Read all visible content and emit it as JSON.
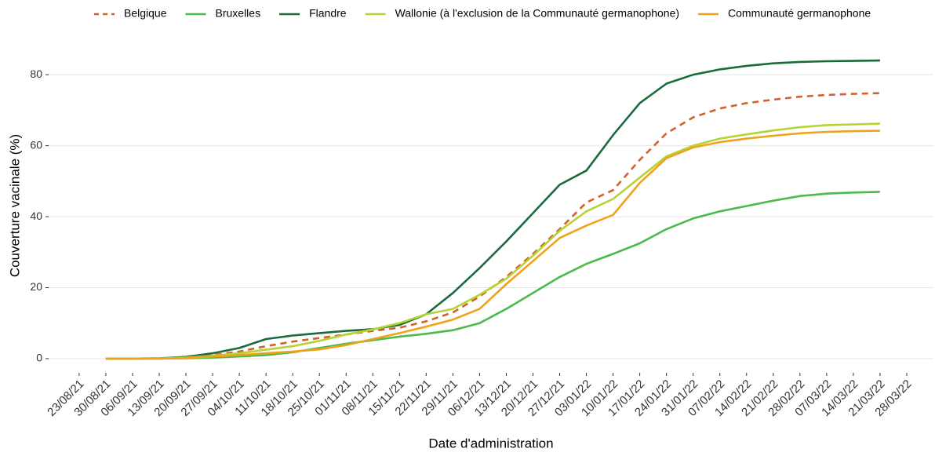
{
  "chart_data": {
    "type": "line",
    "x_label": "Date d'administration",
    "y_label": "Couverture vacinale (%)",
    "x": [
      "30/08/21",
      "06/09/21",
      "13/09/21",
      "20/09/21",
      "27/09/21",
      "04/10/21",
      "11/10/21",
      "18/10/21",
      "25/10/21",
      "01/11/21",
      "08/11/21",
      "15/11/21",
      "22/11/21",
      "29/11/21",
      "06/12/21",
      "13/12/21",
      "20/12/21",
      "27/12/21",
      "03/01/22",
      "10/01/22",
      "17/01/22",
      "24/01/22",
      "31/01/22",
      "07/02/22",
      "14/02/22",
      "21/02/22",
      "28/02/22",
      "07/03/22",
      "14/03/22",
      "21/03/22"
    ],
    "series": [
      {
        "name": "Belgique",
        "color": "#d2622a",
        "dash": true,
        "values": [
          0,
          0,
          0.1,
          0.4,
          1,
          2,
          3.5,
          4.8,
          5.8,
          6.8,
          7.8,
          8.7,
          10.5,
          13,
          17.5,
          23,
          29.5,
          36.5,
          44,
          47.5,
          56,
          63.5,
          68,
          70.5,
          72,
          73,
          73.8,
          74.3,
          74.6,
          74.8
        ]
      },
      {
        "name": "Bruxelles",
        "color": "#4cba4c",
        "values": [
          0,
          0,
          0,
          0.1,
          0.3,
          0.6,
          1,
          1.8,
          3,
          4.2,
          5.2,
          6.2,
          7,
          8,
          10,
          14,
          18.5,
          23,
          26.7,
          29.5,
          32.5,
          36.5,
          39.5,
          41.5,
          43,
          44.5,
          45.8,
          46.5,
          46.8,
          47
        ]
      },
      {
        "name": "Flandre",
        "color": "#1a6b3c",
        "values": [
          0,
          0,
          0.1,
          0.5,
          1.5,
          3,
          5.5,
          6.5,
          7.2,
          7.8,
          8.3,
          9.5,
          12.5,
          18.5,
          25.5,
          33,
          41,
          49,
          53,
          63,
          72,
          77.5,
          80,
          81.5,
          82.5,
          83.2,
          83.6,
          83.8,
          83.9,
          84
        ]
      },
      {
        "name": "Wallonie (à l'exclusion de la Communauté germanophone)",
        "color": "#b5d334",
        "values": [
          0,
          0,
          0.1,
          0.3,
          0.8,
          1.5,
          2.5,
          3.5,
          5,
          6.8,
          8.2,
          10,
          12.5,
          14,
          18,
          22.5,
          29,
          36,
          41.5,
          45,
          51,
          57,
          60,
          62,
          63.2,
          64.3,
          65.2,
          65.8,
          66,
          66.2
        ]
      },
      {
        "name": "Communauté germanophone",
        "color": "#f0a21c",
        "values": [
          0,
          0,
          0,
          0.2,
          0.6,
          1,
          1.5,
          2,
          2.6,
          3.8,
          5.5,
          7.2,
          9,
          11,
          14,
          21,
          27.5,
          34,
          37.5,
          40.5,
          49.5,
          56.5,
          59.5,
          61,
          62,
          62.8,
          63.5,
          63.9,
          64.1,
          64.2
        ]
      }
    ],
    "xlim": [
      "15/08/21",
      "04/04/22"
    ],
    "xticks": [
      "23/08/21",
      "30/08/21",
      "06/09/21",
      "13/09/21",
      "20/09/21",
      "27/09/21",
      "04/10/21",
      "11/10/21",
      "18/10/21",
      "25/10/21",
      "01/11/21",
      "08/11/21",
      "15/11/21",
      "22/11/21",
      "29/11/21",
      "06/12/21",
      "13/12/21",
      "20/12/21",
      "27/12/21",
      "03/01/22",
      "10/01/22",
      "17/01/22",
      "24/01/22",
      "31/01/22",
      "07/02/22",
      "14/02/22",
      "21/02/22",
      "28/02/22",
      "07/03/22",
      "14/03/22",
      "21/03/22",
      "28/03/22"
    ],
    "ylim": [
      -4,
      90
    ],
    "yticks": [
      0,
      20,
      40,
      60,
      80
    ],
    "grid": true,
    "legend": "top"
  }
}
